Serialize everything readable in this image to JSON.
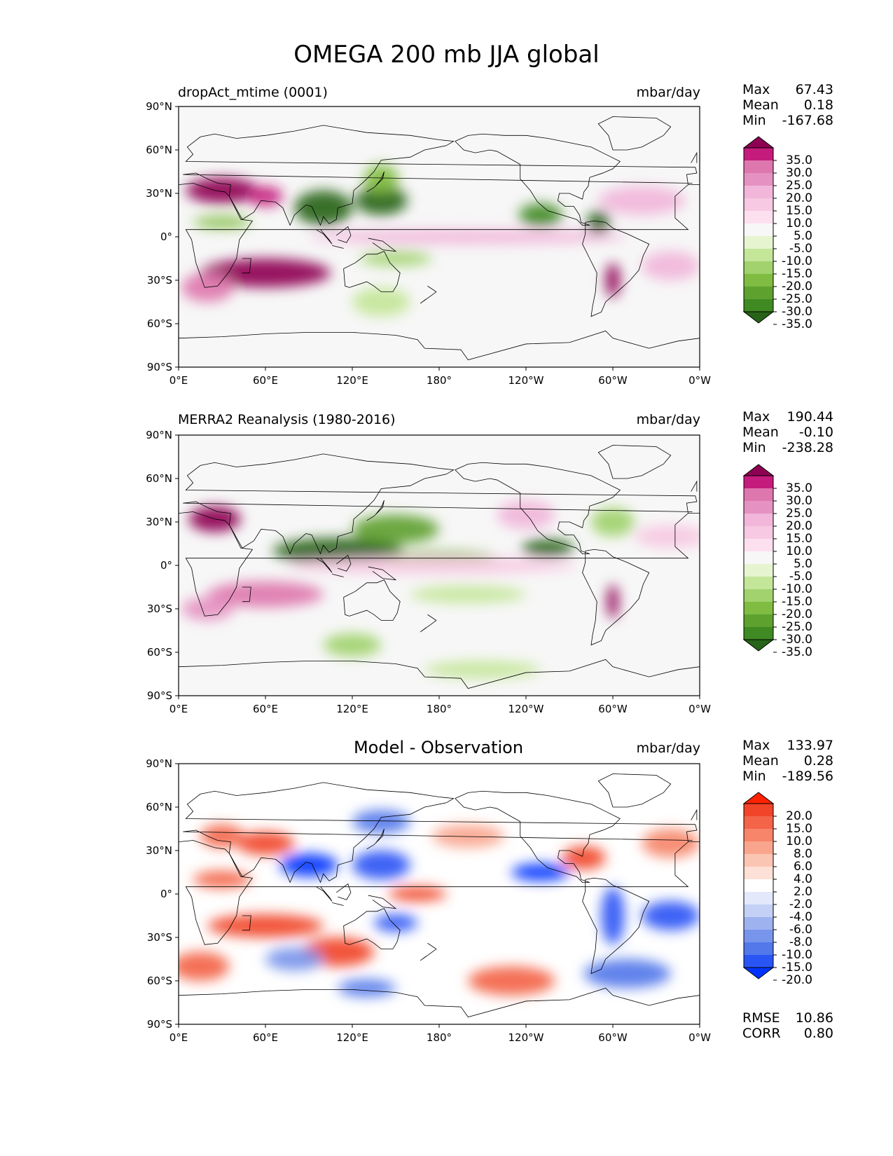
{
  "suptitle": "OMEGA 200 mb JJA global",
  "chart_data": [
    {
      "type": "heatmap",
      "title_left": "dropAct_mtime (0001)",
      "title_center": "",
      "units": "mbar/day",
      "xticks": [
        "0°E",
        "60°E",
        "120°E",
        "180°",
        "120°W",
        "60°W",
        "0°W"
      ],
      "yticks": [
        "90°N",
        "60°N",
        "30°N",
        "0°",
        "30°S",
        "60°S",
        "90°S"
      ],
      "stats": [
        {
          "label": "Max",
          "value": "67.43"
        },
        {
          "label": "Mean",
          "value": "0.18"
        },
        {
          "label": "Min",
          "value": "-167.68"
        }
      ],
      "colorbar": {
        "colors": [
          "#276419",
          "#3f8a22",
          "#5ea12f",
          "#7fbc41",
          "#a1d26d",
          "#c4e699",
          "#e6f5d0",
          "#f7f7f7",
          "#fde0ef",
          "#f7c9e2",
          "#f1b6da",
          "#e592c2",
          "#de77ae",
          "#c51b7d",
          "#8e0152"
        ],
        "labels": [
          "35.0",
          "30.0",
          "25.0",
          "20.0",
          "15.0",
          "10.0",
          "5.0",
          "-5.0",
          "-10.0",
          "-15.0",
          "-20.0",
          "-25.0",
          "-30.0",
          "-35.0"
        ]
      },
      "extra": [],
      "features": [
        {
          "lon": 30,
          "lat": 32,
          "sx": 25,
          "sy": 9,
          "c": "#8e0152"
        },
        {
          "lon": 60,
          "lat": 28,
          "sx": 12,
          "sy": 7,
          "c": "#c51b7d"
        },
        {
          "lon": 60,
          "lat": -25,
          "sx": 45,
          "sy": 10,
          "c": "#8e0152"
        },
        {
          "lon": 20,
          "lat": -35,
          "sx": 18,
          "sy": 10,
          "c": "#de77ae"
        },
        {
          "lon": 100,
          "lat": 20,
          "sx": 20,
          "sy": 12,
          "c": "#276419"
        },
        {
          "lon": 140,
          "lat": 25,
          "sx": 18,
          "sy": 10,
          "c": "#276419"
        },
        {
          "lon": 140,
          "lat": 40,
          "sx": 12,
          "sy": 10,
          "c": "#7fbc41"
        },
        {
          "lon": 250,
          "lat": 15,
          "sx": 15,
          "sy": 8,
          "c": "#3f8a22"
        },
        {
          "lon": 290,
          "lat": 10,
          "sx": 8,
          "sy": 8,
          "c": "#276419"
        },
        {
          "lon": 200,
          "lat": 0,
          "sx": 110,
          "sy": 5,
          "c": "#f1b6da"
        },
        {
          "lon": 150,
          "lat": -15,
          "sx": 25,
          "sy": 5,
          "c": "#a1d26d"
        },
        {
          "lon": 300,
          "lat": -30,
          "sx": 5,
          "sy": 12,
          "c": "#8e0152"
        },
        {
          "lon": 320,
          "lat": 25,
          "sx": 30,
          "sy": 10,
          "c": "#f1b6da"
        },
        {
          "lon": 30,
          "lat": 10,
          "sx": 20,
          "sy": 4,
          "c": "#7fbc41"
        },
        {
          "lon": 340,
          "lat": -20,
          "sx": 20,
          "sy": 10,
          "c": "#f1b6da"
        },
        {
          "lon": 140,
          "lat": -45,
          "sx": 20,
          "sy": 10,
          "c": "#c4e699"
        }
      ]
    },
    {
      "type": "heatmap",
      "title_left": "MERRA2 Reanalysis (1980-2016)",
      "title_center": "",
      "units": "mbar/day",
      "xticks": [
        "0°E",
        "60°E",
        "120°E",
        "180°",
        "120°W",
        "60°W",
        "0°W"
      ],
      "yticks": [
        "90°N",
        "60°N",
        "30°N",
        "0°",
        "30°S",
        "60°S",
        "90°S"
      ],
      "stats": [
        {
          "label": "Max",
          "value": "190.44"
        },
        {
          "label": "Mean",
          "value": "-0.10"
        },
        {
          "label": "Min",
          "value": "-238.28"
        }
      ],
      "colorbar": {
        "colors": [
          "#276419",
          "#3f8a22",
          "#5ea12f",
          "#7fbc41",
          "#a1d26d",
          "#c4e699",
          "#e6f5d0",
          "#f7f7f7",
          "#fde0ef",
          "#f7c9e2",
          "#f1b6da",
          "#e592c2",
          "#de77ae",
          "#c51b7d",
          "#8e0152"
        ],
        "labels": [
          "35.0",
          "30.0",
          "25.0",
          "20.0",
          "15.0",
          "10.0",
          "5.0",
          "-5.0",
          "-10.0",
          "-15.0",
          "-20.0",
          "-25.0",
          "-30.0",
          "-35.0"
        ]
      },
      "extra": [],
      "features": [
        {
          "lon": 25,
          "lat": 32,
          "sx": 18,
          "sy": 9,
          "c": "#8e0152"
        },
        {
          "lon": 60,
          "lat": -20,
          "sx": 40,
          "sy": 9,
          "c": "#de77ae"
        },
        {
          "lon": 20,
          "lat": -30,
          "sx": 18,
          "sy": 8,
          "c": "#e592c2"
        },
        {
          "lon": 110,
          "lat": 10,
          "sx": 45,
          "sy": 9,
          "c": "#276419"
        },
        {
          "lon": 150,
          "lat": 25,
          "sx": 30,
          "sy": 10,
          "c": "#5ea12f"
        },
        {
          "lon": 180,
          "lat": 5,
          "sx": 40,
          "sy": 5,
          "c": "#7fbc41"
        },
        {
          "lon": 255,
          "lat": 12,
          "sx": 18,
          "sy": 6,
          "c": "#276419"
        },
        {
          "lon": 175,
          "lat": 0,
          "sx": 100,
          "sy": 6,
          "c": "#f7c9e2"
        },
        {
          "lon": 200,
          "lat": -20,
          "sx": 40,
          "sy": 6,
          "c": "#c4e699"
        },
        {
          "lon": 300,
          "lat": -25,
          "sx": 4,
          "sy": 12,
          "c": "#8e0152"
        },
        {
          "lon": 240,
          "lat": 35,
          "sx": 20,
          "sy": 10,
          "c": "#f1b6da"
        },
        {
          "lon": 120,
          "lat": -55,
          "sx": 20,
          "sy": 8,
          "c": "#a1d26d"
        },
        {
          "lon": 210,
          "lat": -72,
          "sx": 40,
          "sy": 6,
          "c": "#c4e699"
        },
        {
          "lon": 300,
          "lat": 30,
          "sx": 15,
          "sy": 10,
          "c": "#a1d26d"
        },
        {
          "lon": 340,
          "lat": 20,
          "sx": 25,
          "sy": 8,
          "c": "#f7c9e2"
        }
      ]
    },
    {
      "type": "heatmap",
      "title_left": "",
      "title_center": "Model - Observation",
      "units": "mbar/day",
      "xticks": [
        "0°E",
        "60°E",
        "120°E",
        "180°",
        "120°W",
        "60°W",
        "0°W"
      ],
      "yticks": [
        "90°N",
        "60°N",
        "30°N",
        "0°",
        "30°S",
        "60°S",
        "90°S"
      ],
      "stats": [
        {
          "label": "Max",
          "value": "133.97"
        },
        {
          "label": "Mean",
          "value": "0.28"
        },
        {
          "label": "Min",
          "value": "-189.56"
        }
      ],
      "colorbar": {
        "colors": [
          "#0033ff",
          "#2a55f5",
          "#5278ea",
          "#7895ec",
          "#9fb2f0",
          "#c4d0f5",
          "#e3e9fb",
          "#ffffff",
          "#fde0d6",
          "#fbc5b3",
          "#f9a58d",
          "#f6856a",
          "#f36448",
          "#f14429",
          "#ff2200"
        ],
        "labels": [
          "20.0",
          "15.0",
          "10.0",
          "8.0",
          "6.0",
          "4.0",
          "2.0",
          "-2.0",
          "-4.0",
          "-6.0",
          "-8.0",
          "-10.0",
          "-15.0",
          "-20.0"
        ]
      },
      "extra": [
        {
          "label": "RMSE",
          "value": "10.86"
        },
        {
          "label": "CORR",
          "value": "0.80"
        }
      ],
      "features": [
        {
          "lon": 60,
          "lat": -22,
          "sx": 40,
          "sy": 8,
          "c": "#f14429"
        },
        {
          "lon": 110,
          "lat": -40,
          "sx": 25,
          "sy": 10,
          "c": "#f14429"
        },
        {
          "lon": 90,
          "lat": 20,
          "sx": 20,
          "sy": 8,
          "c": "#0033ff"
        },
        {
          "lon": 140,
          "lat": 20,
          "sx": 20,
          "sy": 10,
          "c": "#2a55f5"
        },
        {
          "lon": 60,
          "lat": 35,
          "sx": 20,
          "sy": 8,
          "c": "#f14429"
        },
        {
          "lon": 150,
          "lat": -20,
          "sx": 15,
          "sy": 6,
          "c": "#2a55f5"
        },
        {
          "lon": 165,
          "lat": 0,
          "sx": 20,
          "sy": 5,
          "c": "#f14429"
        },
        {
          "lon": 80,
          "lat": -45,
          "sx": 20,
          "sy": 8,
          "c": "#7895ec"
        },
        {
          "lon": 230,
          "lat": -60,
          "sx": 30,
          "sy": 10,
          "c": "#f36448"
        },
        {
          "lon": 300,
          "lat": -15,
          "sx": 8,
          "sy": 20,
          "c": "#2a55f5"
        },
        {
          "lon": 310,
          "lat": -55,
          "sx": 30,
          "sy": 10,
          "c": "#5278ea"
        },
        {
          "lon": 250,
          "lat": 15,
          "sx": 20,
          "sy": 6,
          "c": "#0033ff"
        },
        {
          "lon": 280,
          "lat": 25,
          "sx": 15,
          "sy": 8,
          "c": "#f14429"
        },
        {
          "lon": 30,
          "lat": 10,
          "sx": 20,
          "sy": 6,
          "c": "#f36448"
        },
        {
          "lon": 30,
          "lat": 40,
          "sx": 15,
          "sy": 8,
          "c": "#f36448"
        },
        {
          "lon": 140,
          "lat": 50,
          "sx": 20,
          "sy": 8,
          "c": "#5278ea"
        },
        {
          "lon": 200,
          "lat": 40,
          "sx": 25,
          "sy": 8,
          "c": "#f9a58d"
        },
        {
          "lon": 340,
          "lat": 35,
          "sx": 20,
          "sy": 10,
          "c": "#f6856a"
        },
        {
          "lon": 340,
          "lat": -15,
          "sx": 20,
          "sy": 10,
          "c": "#2a55f5"
        },
        {
          "lon": 130,
          "lat": -65,
          "sx": 20,
          "sy": 6,
          "c": "#5278ea"
        },
        {
          "lon": 15,
          "lat": -50,
          "sx": 20,
          "sy": 10,
          "c": "#f36448"
        }
      ]
    }
  ]
}
